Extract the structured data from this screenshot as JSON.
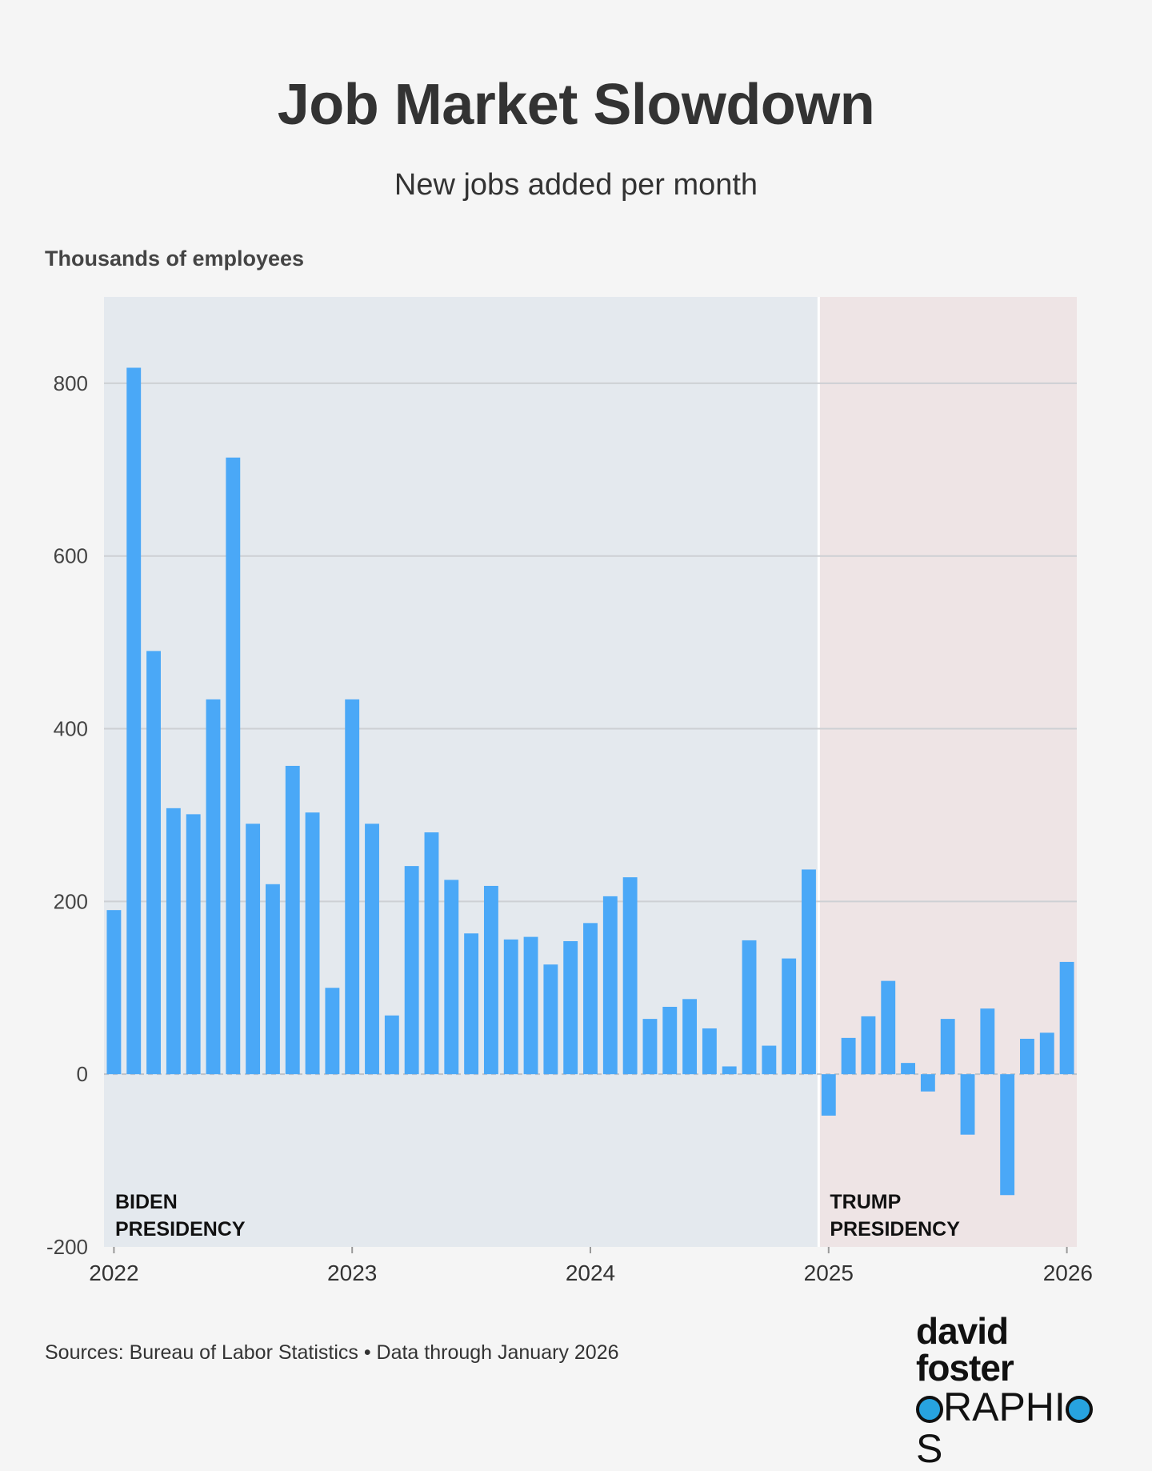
{
  "chart_data": {
    "type": "bar",
    "title": "Job Market Slowdown",
    "subtitle": "New jobs added per month",
    "ylabel": "Thousands of employees",
    "ylim": [
      -200,
      900
    ],
    "yticks": [
      -200,
      0,
      200,
      400,
      600,
      800
    ],
    "ytick_labels": [
      "-200",
      "0",
      "200",
      "400",
      "600",
      "800"
    ],
    "xticks": [
      "2022",
      "2023",
      "2024",
      "2025",
      "2026"
    ],
    "grid": true,
    "bar_color": "#4aa8f7",
    "start_month": "2022-01",
    "end_month": "2026-01",
    "values": [
      190,
      818,
      490,
      308,
      301,
      434,
      714,
      290,
      220,
      357,
      303,
      100,
      434,
      290,
      68,
      241,
      280,
      225,
      163,
      218,
      156,
      159,
      127,
      154,
      175,
      206,
      228,
      64,
      78,
      87,
      53,
      9,
      155,
      33,
      134,
      237,
      -48,
      42,
      67,
      108,
      13,
      -20,
      64,
      -70,
      76,
      -140,
      41,
      48,
      130
    ],
    "regions": [
      {
        "label_lines": [
          "BIDEN",
          "PRESIDENCY"
        ],
        "from_month": "2022-01",
        "to_month": "2025-01",
        "color": "#e4e9ee"
      },
      {
        "label_lines": [
          "TRUMP",
          "PRESIDENCY"
        ],
        "from_month": "2025-01",
        "to_month": "2026-01",
        "color": "#eee4e5"
      }
    ]
  },
  "footer": {
    "sources": "Sources: Bureau of Labor Statistics • Data through January 2026"
  },
  "logo": {
    "line1": "david foster",
    "line2_start": "",
    "line2_mid": "RAPHI",
    "line2_end": "S",
    "accent_color": "#27a3e0"
  }
}
